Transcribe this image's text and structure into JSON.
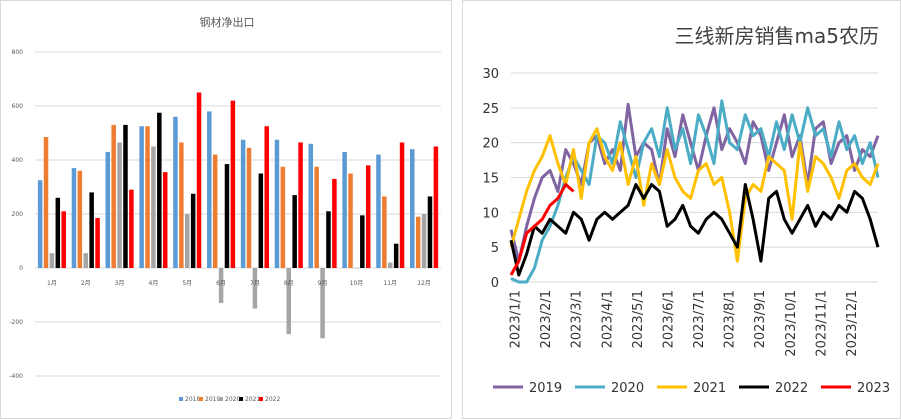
{
  "chart_data": [
    {
      "type": "bar",
      "title": "钢材净出口",
      "categories": [
        "1月",
        "2月",
        "3月",
        "4月",
        "5月",
        "6月",
        "7月",
        "8月",
        "9月",
        "10月",
        "11月",
        "12月"
      ],
      "ylim": [
        -400,
        800
      ],
      "yticks": [
        "800",
        "600",
        "400",
        "200",
        "0",
        "-200",
        "-400"
      ],
      "ytick_values": [
        800,
        600,
        400,
        200,
        0,
        -200,
        -400
      ],
      "grid": true,
      "legend_position": "bottom",
      "series": [
        {
          "name": "2018",
          "color": "#5b9bd5",
          "values": [
            325,
            370,
            430,
            525,
            560,
            580,
            475,
            475,
            460,
            430,
            420,
            440
          ]
        },
        {
          "name": "2019",
          "color": "#ed7d31",
          "values": [
            485,
            360,
            530,
            525,
            465,
            420,
            445,
            375,
            375,
            350,
            265,
            190
          ]
        },
        {
          "name": "2020",
          "color": "#a5a5a5",
          "values": [
            55,
            55,
            465,
            450,
            200,
            -130,
            -150,
            -245,
            -260,
            0,
            20,
            200
          ]
        },
        {
          "name": "2021",
          "color": "#000000",
          "values": [
            260,
            280,
            530,
            575,
            275,
            385,
            350,
            270,
            210,
            195,
            90,
            265
          ]
        },
        {
          "name": "2022",
          "color": "#ff0000",
          "values": [
            210,
            185,
            290,
            355,
            650,
            620,
            525,
            465,
            330,
            380,
            465,
            450
          ]
        }
      ]
    },
    {
      "type": "line",
      "title": "三线新房销售ma5农历",
      "ylim": [
        0,
        30
      ],
      "yticks": [
        "30",
        "25",
        "20",
        "15",
        "10",
        "5",
        "0"
      ],
      "ytick_values": [
        30,
        25,
        20,
        15,
        10,
        5,
        0
      ],
      "xticks": [
        "2023/1/1",
        "2023/2/1",
        "2023/3/1",
        "2023/4/1",
        "2023/5/1",
        "2023/6/1",
        "2023/7/1",
        "2023/8/1",
        "2023/9/1",
        "2023/10/1",
        "2023/11/1",
        "2023/12/1"
      ],
      "grid": true,
      "legend_position": "bottom",
      "series": [
        {
          "name": "2019",
          "color": "#8064a2",
          "values": [
            7.5,
            3,
            8,
            12,
            15,
            16,
            13,
            19,
            17,
            14,
            20,
            21,
            17,
            19,
            16,
            25.5,
            18,
            20,
            19,
            14,
            22,
            18,
            24,
            20,
            16,
            21,
            25,
            19,
            22,
            20,
            17,
            23,
            21,
            16,
            20,
            24,
            18,
            21,
            14,
            22,
            23,
            17,
            20,
            21,
            16,
            19,
            18,
            21
          ]
        },
        {
          "name": "2020",
          "color": "#4bacc6",
          "values": [
            0.5,
            0,
            0,
            2,
            6,
            8,
            11,
            15,
            18,
            16,
            14,
            21,
            20,
            17,
            23,
            19,
            15,
            20,
            22,
            18,
            25,
            19,
            22,
            17,
            24,
            21,
            17,
            26,
            20,
            19,
            24,
            21,
            22,
            18,
            23,
            19,
            24,
            20,
            25,
            21,
            22,
            18,
            23,
            19,
            21,
            17,
            20,
            15
          ]
        },
        {
          "name": "2021",
          "color": "#ffc000",
          "values": [
            5,
            9,
            13,
            16,
            18,
            21,
            17,
            14,
            19,
            12,
            20,
            22,
            18,
            16,
            20,
            14,
            18,
            11,
            17,
            14,
            19,
            15,
            13,
            12,
            16,
            17,
            14,
            15,
            10,
            3,
            12,
            14,
            13,
            18,
            17,
            16,
            9,
            20,
            13,
            18,
            17,
            15,
            12,
            16,
            17,
            15,
            14,
            17
          ]
        },
        {
          "name": "2022",
          "color": "#000000",
          "values": [
            6,
            1,
            4,
            8,
            7,
            9,
            8,
            7,
            10,
            9,
            6,
            9,
            10,
            9,
            10,
            11,
            14,
            12,
            14,
            13,
            8,
            9,
            11,
            8,
            7,
            9,
            10,
            9,
            7,
            5,
            14,
            9,
            3,
            12,
            13,
            9,
            7,
            9,
            11,
            8,
            10,
            9,
            11,
            10,
            13,
            12,
            9,
            5
          ]
        },
        {
          "name": "2023",
          "color": "#ff0000",
          "values": [
            1,
            3,
            7,
            8,
            9,
            11,
            12,
            14,
            13
          ]
        }
      ]
    }
  ]
}
